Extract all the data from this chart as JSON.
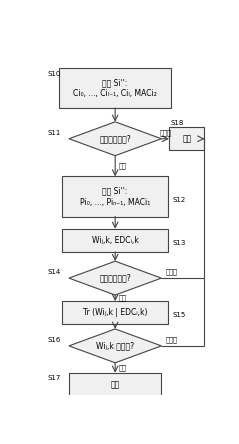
{
  "bg_color": "#ffffff",
  "fig_width": 2.39,
  "fig_height": 4.44,
  "dpi": 100,
  "s10_label": "加载 Si'':\nCi₀, ..., Ciₗ₋₁, Ciₗ, MACi₂",
  "s11_label": "完整性可以吗?",
  "s12_label": "解密 Si'':\nPi₀, ..., Piₙ₋₁, MACi₁",
  "s13_label": "Wiⱼ,k, EDCᵢ,k",
  "s14_label": "完整性可以吗?",
  "s15_label": "Tr (Wiⱼ,k | EDCᵢ,k)",
  "s16_label": "Wiⱼ,k 可以吗?",
  "s17_label": "处理",
  "s18_label": "错误",
  "yes_label": "可以",
  "no_label": "不可以",
  "edge_color": "#444444",
  "face_color": "#f0f0f0",
  "text_color": "#000000",
  "font_size": 5.5,
  "step_font_size": 5.0,
  "arrow_label_font_size": 4.8
}
